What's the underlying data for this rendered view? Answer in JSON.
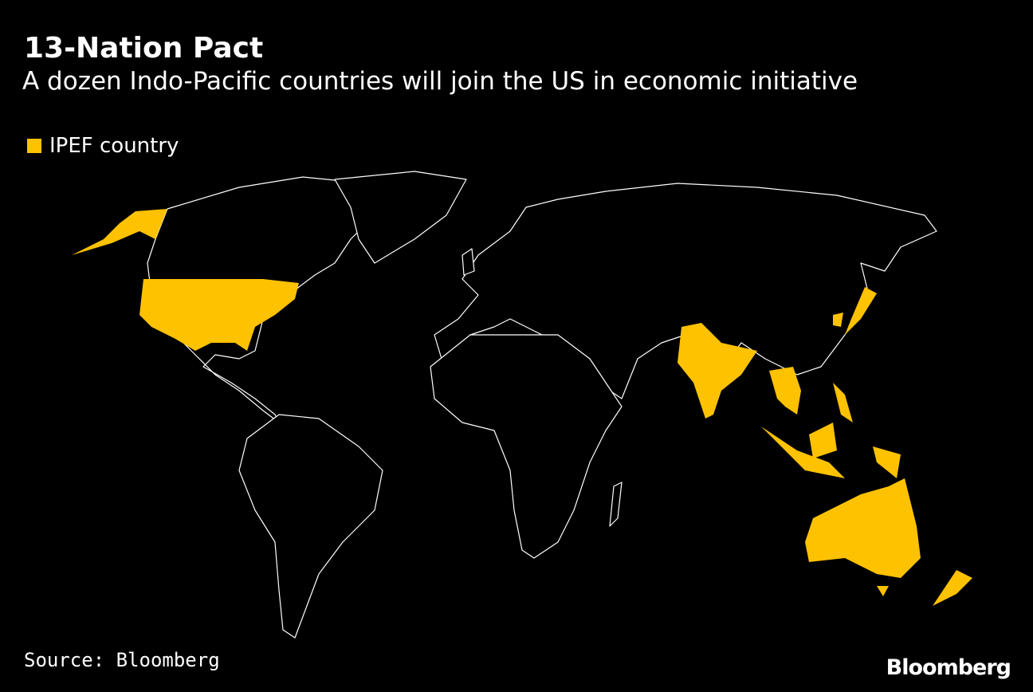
{
  "header": {
    "title": "13-Nation Pact",
    "subtitle": "A dozen Indo-Pacific countries will join the US in economic initiative"
  },
  "legend": {
    "label": "IPEF country",
    "color": "#fec200"
  },
  "footer": {
    "source": "Source: Bloomberg",
    "logo": "Bloomberg"
  }
}
